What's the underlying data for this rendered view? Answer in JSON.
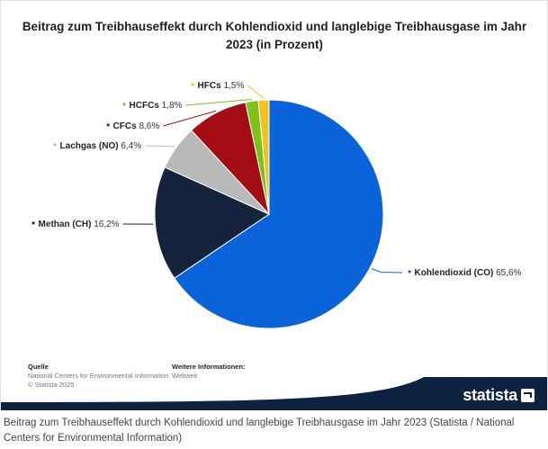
{
  "chart_data": {
    "type": "pie",
    "title": "Beitrag zum Treibhauseffekt durch Kohlendioxid und langlebige Treibhausgase im Jahr 2023 (in Prozent)",
    "slices": [
      {
        "name": "Kohlendioxid (CO)",
        "value": 65.6,
        "label": "65,6%",
        "color": "#0a63d8"
      },
      {
        "name": "Methan (CH)",
        "value": 16.2,
        "label": "16,2%",
        "color": "#15233c"
      },
      {
        "name": "Lachgas (NO)",
        "value": 6.4,
        "label": "6,4%",
        "color": "#b9b9b9"
      },
      {
        "name": "CFCs",
        "value": 8.6,
        "label": "8,6%",
        "color": "#a50d14"
      },
      {
        "name": "HCFCs",
        "value": 1.8,
        "label": "1,8%",
        "color": "#7cc21a"
      },
      {
        "name": "HFCs",
        "value": 1.5,
        "label": "1,5%",
        "color": "#f2c21d"
      }
    ]
  },
  "footer": {
    "source_heading": "Quelle",
    "source_text": "National Centers for Environmental Information",
    "copyright": "© Statista 2025",
    "more_heading": "Weitere Informationen:",
    "more_text": "Weltweit",
    "brand": "statista"
  },
  "caption": "Beitrag zum Treibhauseffekt durch Kohlendioxid und langlebige Treibhausgase im Jahr 2023 (Statista / National Centers for Environmental Information)",
  "colors": {
    "brand_dark": "#0e2341"
  }
}
